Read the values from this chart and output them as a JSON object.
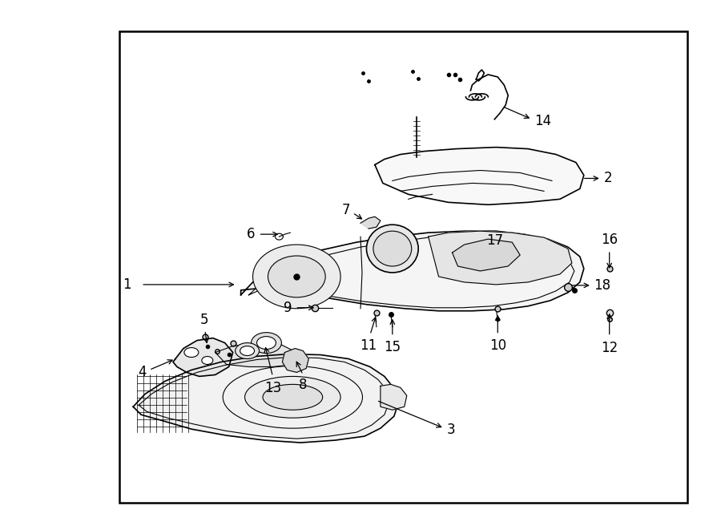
{
  "fig_width": 9.0,
  "fig_height": 6.61,
  "dpi": 100,
  "bg_color": "#ffffff",
  "border_color": "#000000",
  "border_lw": 1.5,
  "label_fontsize": 12,
  "label_color": "#000000"
}
